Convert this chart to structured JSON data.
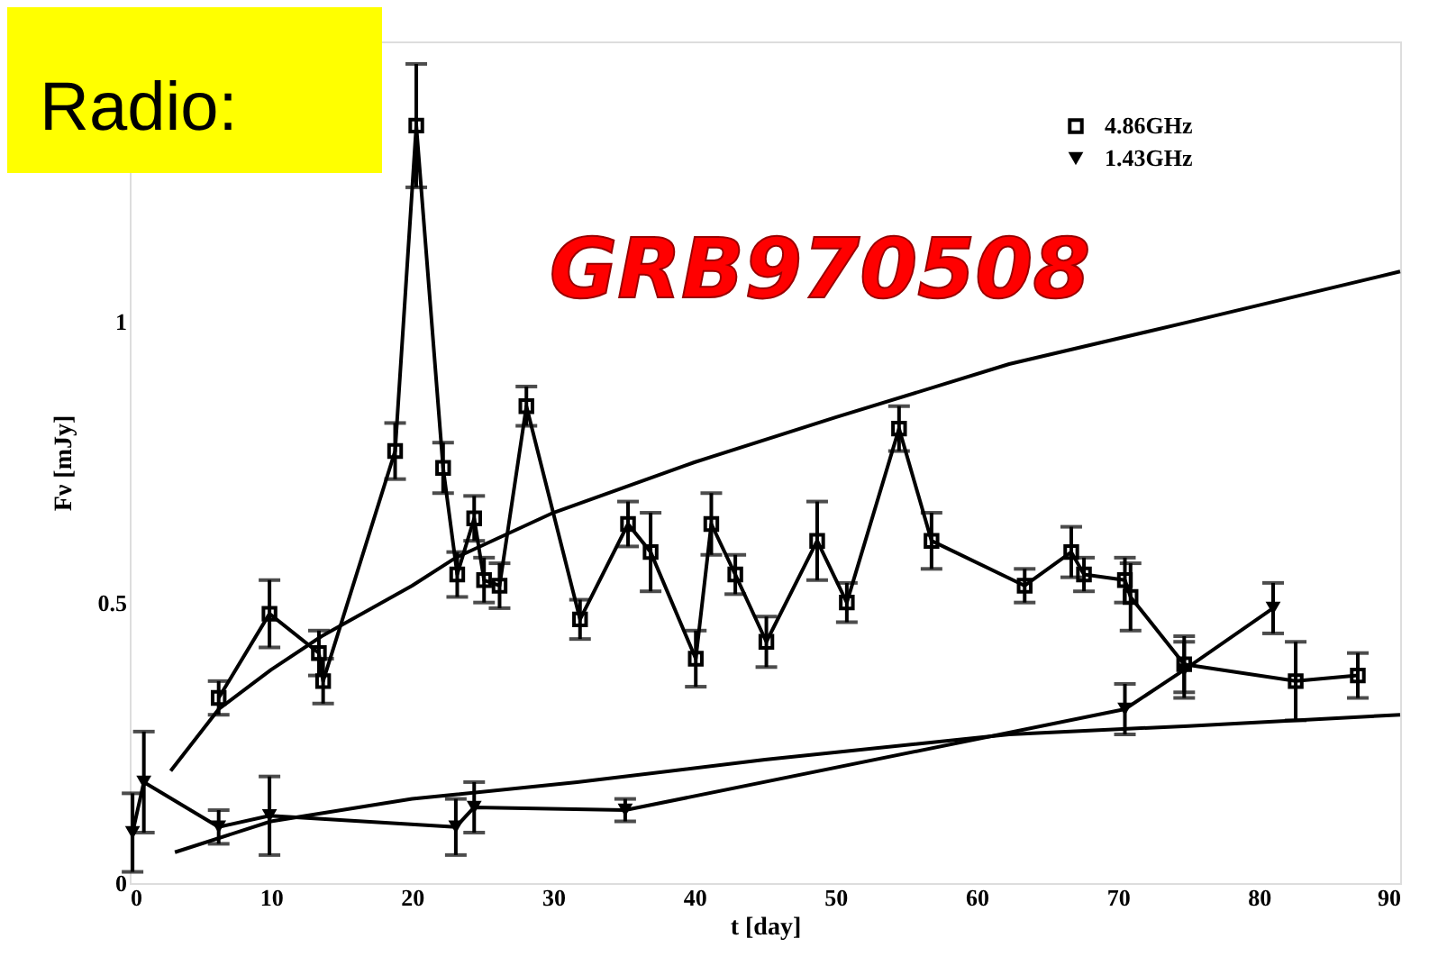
{
  "chart_data": {
    "type": "line",
    "title": "GRB970508",
    "xlabel": "t [day]",
    "ylabel": "Fν [mJy]",
    "annotations": [
      "Radio:"
    ],
    "xlim": [
      0,
      90
    ],
    "xticks": [
      0,
      10,
      20,
      30,
      40,
      50,
      60,
      70,
      80,
      90
    ],
    "ylim": [
      0,
      1.5
    ],
    "yticks": [
      0,
      0.5,
      1
    ],
    "grid": false,
    "legend": "top right",
    "series": [
      {
        "name": "4.86GHz",
        "color": "#000000",
        "marker": "square",
        "x": [
          6.3,
          9.9,
          13.4,
          13.7,
          18.8,
          20.3,
          22.2,
          23.2,
          24.4,
          25.1,
          26.2,
          28.1,
          31.9,
          35.3,
          36.9,
          40.1,
          41.2,
          42.9,
          45.1,
          48.7,
          50.8,
          54.5,
          56.8,
          63.4,
          66.7,
          67.6,
          70.5,
          70.9,
          74.7,
          82.6,
          87.0
        ],
        "values": [
          0.33,
          0.48,
          0.41,
          0.36,
          0.77,
          1.35,
          0.74,
          0.55,
          0.65,
          0.54,
          0.53,
          0.85,
          0.47,
          0.64,
          0.59,
          0.4,
          0.64,
          0.55,
          0.43,
          0.61,
          0.5,
          0.81,
          0.61,
          0.53,
          0.59,
          0.55,
          0.54,
          0.51,
          0.39,
          0.36,
          0.37
        ],
        "errors": [
          0.03,
          0.06,
          0.04,
          0.04,
          0.05,
          0.11,
          0.045,
          0.04,
          0.04,
          0.04,
          0.04,
          0.035,
          0.035,
          0.04,
          0.07,
          0.05,
          0.055,
          0.035,
          0.045,
          0.07,
          0.035,
          0.04,
          0.05,
          0.03,
          0.045,
          0.03,
          0.04,
          0.06,
          0.05,
          0.07,
          0.04
        ]
      },
      {
        "name": "1.43GHz",
        "color": "#000000",
        "marker": "triangle",
        "x": [
          0.2,
          1.0,
          6.3,
          9.9,
          23.1,
          24.4,
          35.1,
          70.5,
          74.7,
          81.0
        ],
        "values": [
          0.09,
          0.18,
          0.1,
          0.12,
          0.1,
          0.135,
          0.13,
          0.31,
          0.38,
          0.49
        ],
        "errors": [
          0.07,
          0.09,
          0.03,
          0.07,
          0.05,
          0.045,
          0.02,
          0.045,
          0.05,
          0.045
        ]
      },
      {
        "color": "#000000",
        "marker": "none",
        "x": [
          2.9,
          6.3,
          10,
          13.6,
          20,
          23.1,
          30,
          40,
          50,
          62.3,
          75,
          90
        ],
        "values": [
          0.2,
          0.31,
          0.38,
          0.44,
          0.53,
          0.58,
          0.66,
          0.75,
          0.83,
          0.925,
          1.0,
          1.09
        ]
      },
      {
        "color": "#000000",
        "marker": "none",
        "x": [
          3.2,
          10,
          20,
          31.7,
          45,
          62.3,
          75,
          90
        ],
        "values": [
          0.055,
          0.11,
          0.15,
          0.18,
          0.22,
          0.265,
          0.28,
          0.3
        ]
      }
    ]
  }
}
